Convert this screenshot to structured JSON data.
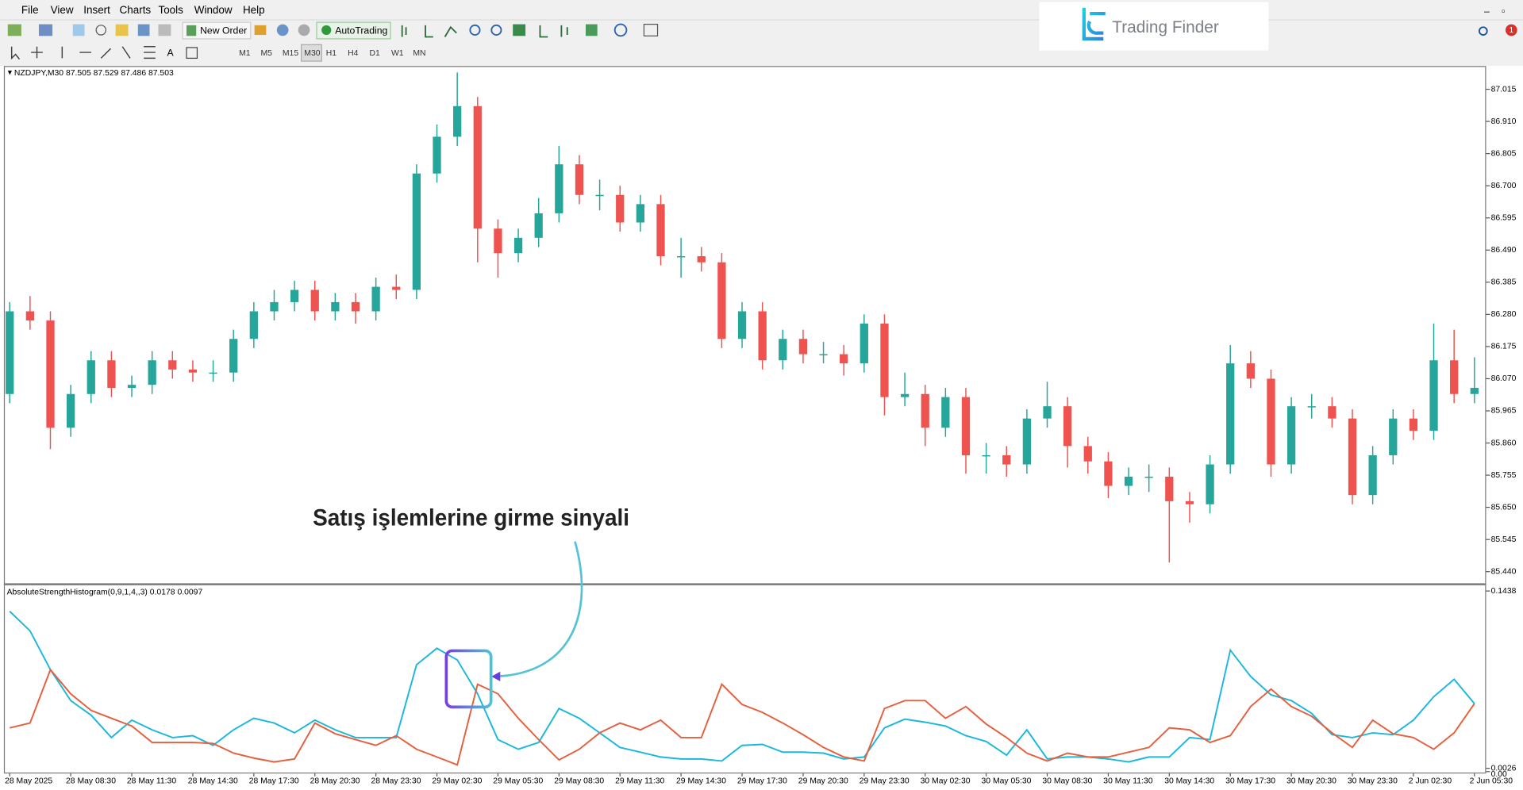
{
  "menu": [
    "File",
    "View",
    "Insert",
    "Charts",
    "Tools",
    "Window",
    "Help"
  ],
  "toolbar": {
    "new_order": "New Order",
    "autotrading": "AutoTrading"
  },
  "timeframes": [
    "M1",
    "M5",
    "M15",
    "M30",
    "H1",
    "H4",
    "D1",
    "W1",
    "MN"
  ],
  "logo": "Trading Finder",
  "badge": "1",
  "chart_data": [
    {
      "type": "candlestick",
      "title": "NZDJPY,M30",
      "header_values": [
        87.505,
        87.529,
        87.486,
        87.503
      ],
      "annotation": "Satış işlemlerine girme sinyali",
      "up_color": "#26a69a",
      "down_color": "#ef5350",
      "grid": false,
      "ylim": [
        85.402,
        87.091
      ],
      "yticks": [
        87.015,
        {
          "value": 86.91,
          "label": "86.910"
        },
        86.805,
        {
          "value": 86.7,
          "label": "86.700"
        },
        86.595,
        {
          "value": 86.49,
          "label": "86.490"
        },
        86.385,
        {
          "value": 86.28,
          "label": "86.280"
        },
        86.175,
        {
          "value": 86.07,
          "label": "86.070"
        },
        85.965,
        {
          "value": 85.86,
          "label": "85.860"
        },
        85.755,
        {
          "value": 85.65,
          "label": "85.650"
        },
        85.545,
        {
          "value": 85.44,
          "label": "85.440"
        }
      ],
      "categories": [
        "28 May 2025",
        null,
        null,
        "28 May 08:30",
        null,
        null,
        "28 May 11:30",
        null,
        null,
        "28 May 14:30",
        null,
        null,
        "28 May 17:30",
        null,
        null,
        "28 May 20:30",
        null,
        null,
        "28 May 23:30",
        null,
        null,
        "29 May 02:30",
        null,
        null,
        "29 May 05:30",
        null,
        null,
        "29 May 08:30",
        null,
        null,
        "29 May 11:30",
        null,
        null,
        "29 May 14:30",
        null,
        null,
        "29 May 17:30",
        null,
        null,
        "29 May 20:30",
        null,
        null,
        "29 May 23:30",
        null,
        null,
        "30 May 02:30",
        null,
        null,
        "30 May 05:30",
        null,
        null,
        "30 May 08:30",
        null,
        null,
        "30 May 11:30",
        null,
        null,
        "30 May 14:30",
        null,
        null,
        "30 May 17:30",
        null,
        null,
        "30 May 20:30",
        null,
        null,
        "30 May 23:30",
        null,
        null,
        "2 Jun 02:30",
        null,
        null,
        "2 Jun 05:30"
      ],
      "ohlc": [
        [
          86.02,
          86.32,
          85.99,
          86.29
        ],
        [
          86.29,
          86.34,
          86.23,
          86.26
        ],
        [
          86.26,
          86.29,
          85.84,
          85.91
        ],
        [
          85.91,
          86.05,
          85.88,
          86.02
        ],
        [
          86.02,
          86.16,
          85.99,
          86.13
        ],
        [
          86.13,
          86.16,
          86.01,
          86.04
        ],
        [
          86.04,
          86.08,
          86.01,
          86.05
        ],
        [
          86.05,
          86.16,
          86.02,
          86.13
        ],
        [
          86.13,
          86.16,
          86.07,
          86.1
        ],
        [
          86.1,
          86.13,
          86.06,
          86.09
        ],
        [
          86.09,
          86.13,
          86.06,
          86.09
        ],
        [
          86.09,
          86.23,
          86.06,
          86.2
        ],
        [
          86.2,
          86.32,
          86.17,
          86.29
        ],
        [
          86.29,
          86.36,
          86.26,
          86.32
        ],
        [
          86.32,
          86.39,
          86.29,
          86.36
        ],
        [
          86.36,
          86.39,
          86.26,
          86.29
        ],
        [
          86.29,
          86.35,
          86.26,
          86.32
        ],
        [
          86.32,
          86.35,
          86.25,
          86.29
        ],
        [
          86.29,
          86.4,
          86.26,
          86.37
        ],
        [
          86.37,
          86.41,
          86.33,
          86.36
        ],
        [
          86.36,
          86.77,
          86.33,
          86.74
        ],
        [
          86.74,
          86.9,
          86.71,
          86.86
        ],
        [
          86.86,
          87.07,
          86.83,
          86.96
        ],
        [
          86.96,
          86.99,
          86.45,
          86.56
        ],
        [
          86.56,
          86.59,
          86.4,
          86.48
        ],
        [
          86.48,
          86.56,
          86.45,
          86.53
        ],
        [
          86.53,
          86.66,
          86.5,
          86.61
        ],
        [
          86.61,
          86.83,
          86.58,
          86.77
        ],
        [
          86.77,
          86.8,
          86.64,
          86.67
        ],
        [
          86.67,
          86.72,
          86.62,
          86.67
        ],
        [
          86.67,
          86.7,
          86.55,
          86.58
        ],
        [
          86.58,
          86.67,
          86.55,
          86.64
        ],
        [
          86.64,
          86.67,
          86.44,
          86.47
        ],
        [
          86.47,
          86.53,
          86.4,
          86.47
        ],
        [
          86.47,
          86.5,
          86.42,
          86.45
        ],
        [
          86.45,
          86.48,
          86.17,
          86.2
        ],
        [
          86.2,
          86.32,
          86.17,
          86.29
        ],
        [
          86.29,
          86.32,
          86.1,
          86.13
        ],
        [
          86.13,
          86.23,
          86.1,
          86.2
        ],
        [
          86.2,
          86.23,
          86.12,
          86.15
        ],
        [
          86.15,
          86.19,
          86.12,
          86.15
        ],
        [
          86.15,
          86.18,
          86.08,
          86.12
        ],
        [
          86.12,
          86.28,
          86.09,
          86.25
        ],
        [
          86.25,
          86.28,
          85.95,
          86.01
        ],
        [
          86.01,
          86.09,
          85.98,
          86.02
        ],
        [
          86.02,
          86.05,
          85.85,
          85.91
        ],
        [
          85.91,
          86.04,
          85.88,
          86.01
        ],
        [
          86.01,
          86.04,
          85.76,
          85.82
        ],
        [
          85.82,
          85.86,
          85.76,
          85.82
        ],
        [
          85.82,
          85.85,
          85.75,
          85.79
        ],
        [
          85.79,
          85.97,
          85.76,
          85.94
        ],
        [
          85.94,
          86.06,
          85.91,
          85.98
        ],
        [
          85.98,
          86.01,
          85.78,
          85.85
        ],
        [
          85.85,
          85.88,
          85.76,
          85.8
        ],
        [
          85.8,
          85.83,
          85.68,
          85.72
        ],
        [
          85.72,
          85.78,
          85.69,
          85.75
        ],
        [
          85.75,
          85.79,
          85.7,
          85.75
        ],
        [
          85.75,
          85.78,
          85.47,
          85.67
        ],
        [
          85.67,
          85.7,
          85.6,
          85.66
        ],
        [
          85.66,
          85.82,
          85.63,
          85.79
        ],
        [
          85.79,
          86.18,
          85.76,
          86.12
        ],
        [
          86.12,
          86.16,
          86.04,
          86.07
        ],
        [
          86.07,
          86.1,
          85.75,
          85.79
        ],
        [
          85.79,
          86.01,
          85.76,
          85.98
        ],
        [
          85.98,
          86.02,
          85.94,
          85.98
        ],
        [
          85.98,
          86.01,
          85.91,
          85.94
        ],
        [
          85.94,
          85.97,
          85.66,
          85.69
        ],
        [
          85.69,
          85.85,
          85.66,
          85.82
        ],
        [
          85.82,
          85.97,
          85.79,
          85.94
        ],
        [
          85.94,
          85.97,
          85.87,
          85.9
        ],
        [
          85.9,
          86.25,
          85.87,
          86.13
        ],
        [
          86.13,
          86.23,
          85.99,
          86.02
        ],
        [
          86.02,
          86.14,
          85.99,
          86.04
        ]
      ]
    },
    {
      "type": "line",
      "title": "AbsoluteStrengthHistogram(0,9,1,4,,3)",
      "header_values": [
        0.0178,
        0.0097
      ],
      "ylim": [
        -0.0015,
        0.1484
      ],
      "yticks": [
        0.1438,
        0.0026,
        {
          "value": 0,
          "label": "0.00"
        }
      ],
      "series": [
        {
          "color": "#1cb8dc",
          "values": [
            0.1276,
            0.1121,
            0.0812,
            0.0565,
            0.0449,
            0.0271,
            0.041,
            0.0333,
            0.0271,
            0.0286,
            0.0209,
            0.0333,
            0.0425,
            0.0387,
            0.0309,
            0.041,
            0.0333,
            0.0271,
            0.0271,
            0.0271,
            0.0851,
            0.0982,
            0.0889,
            0.0619,
            0.0255,
            0.0178,
            0.0232,
            0.0503,
            0.0425,
            0.0309,
            0.0193,
            0.0155,
            0.0116,
            0.0101,
            0.0101,
            0.0085,
            0.0209,
            0.0217,
            0.0155,
            0.0155,
            0.0147,
            0.0101,
            0.0116,
            0.0348,
            0.0418,
            0.0394,
            0.0363,
            0.0286,
            0.024,
            0.0131,
            0.0333,
            0.0101,
            0.0116,
            0.0116,
            0.0101,
            0.0077,
            0.0116,
            0.0116,
            0.0271,
            0.0255,
            0.0967,
            0.0758,
            0.0611,
            0.0565,
            0.0464,
            0.0294,
            0.0271,
            0.0309,
            0.0294,
            0.041,
            0.0596,
            0.0735,
            0.0541
          ]
        },
        {
          "color": "#e4603e",
          "values": [
            0.0348,
            0.0387,
            0.0812,
            0.0619,
            0.0487,
            0.0425,
            0.0363,
            0.0232,
            0.0232,
            0.0232,
            0.0224,
            0.0147,
            0.0108,
            0.0077,
            0.0101,
            0.0387,
            0.0302,
            0.0255,
            0.0209,
            0.0286,
            0.0178,
            0.0116,
            0.0054,
            0.0696,
            0.0619,
            0.0425,
            0.0255,
            0.0093,
            0.0178,
            0.0309,
            0.0387,
            0.0333,
            0.041,
            0.0271,
            0.0271,
            0.0696,
            0.0534,
            0.0472,
            0.0387,
            0.0294,
            0.0193,
            0.0116,
            0.0085,
            0.0503,
            0.0565,
            0.0565,
            0.0425,
            0.0518,
            0.0379,
            0.0271,
            0.0147,
            0.0085,
            0.0147,
            0.0116,
            0.0116,
            0.0155,
            0.0193,
            0.0348,
            0.0333,
            0.0232,
            0.0286,
            0.0518,
            0.0657,
            0.0518,
            0.0441,
            0.0309,
            0.0193,
            0.041,
            0.0302,
            0.0271,
            0.0178,
            0.0309,
            0.0541
          ]
        }
      ]
    }
  ]
}
